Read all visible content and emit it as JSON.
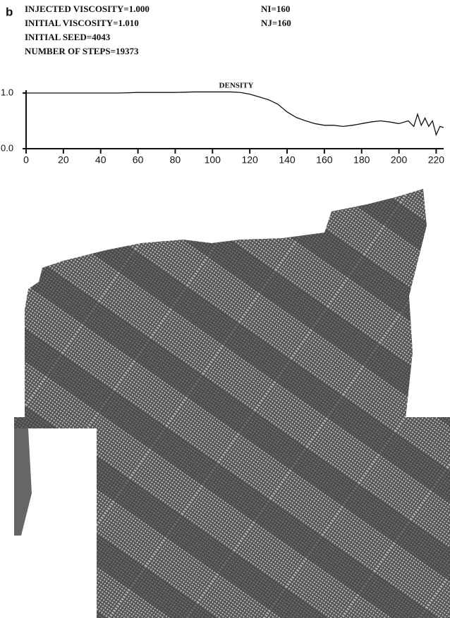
{
  "header": {
    "panel": "b",
    "left": [
      "INJECTED VISCOSITY=1.000",
      "INITIAL VISCOSITY=1.010",
      "INITIAL SEED=4043",
      "NUMBER OF STEPS=19373"
    ],
    "right": [
      "NI=160",
      "NJ=160"
    ]
  },
  "chart_data": {
    "type": "line",
    "title": "DENSITY",
    "x": [
      0,
      10,
      20,
      30,
      40,
      50,
      60,
      70,
      80,
      90,
      100,
      110,
      115,
      120,
      125,
      130,
      135,
      140,
      145,
      150,
      155,
      160,
      165,
      170,
      175,
      180,
      185,
      190,
      195,
      200,
      205,
      208,
      210,
      212,
      214,
      216,
      218,
      220,
      222,
      224
    ],
    "values": [
      1.0,
      1.0,
      1.0,
      1.0,
      1.0,
      1.0,
      1.01,
      1.01,
      1.01,
      1.02,
      1.02,
      1.02,
      1.01,
      0.98,
      0.93,
      0.88,
      0.8,
      0.66,
      0.56,
      0.5,
      0.45,
      0.42,
      0.42,
      0.4,
      0.42,
      0.45,
      0.48,
      0.5,
      0.48,
      0.45,
      0.5,
      0.4,
      0.62,
      0.42,
      0.55,
      0.4,
      0.5,
      0.25,
      0.4,
      0.38
    ],
    "color": "#111111",
    "xlim": [
      0,
      224
    ],
    "xticks": [
      0,
      20,
      40,
      60,
      80,
      100,
      120,
      140,
      160,
      180,
      200,
      220
    ],
    "ylim": [
      0,
      1
    ],
    "yticks": [
      {
        "value": 0,
        "label": "0.0"
      },
      {
        "value": 1,
        "label": "1.0"
      }
    ]
  }
}
